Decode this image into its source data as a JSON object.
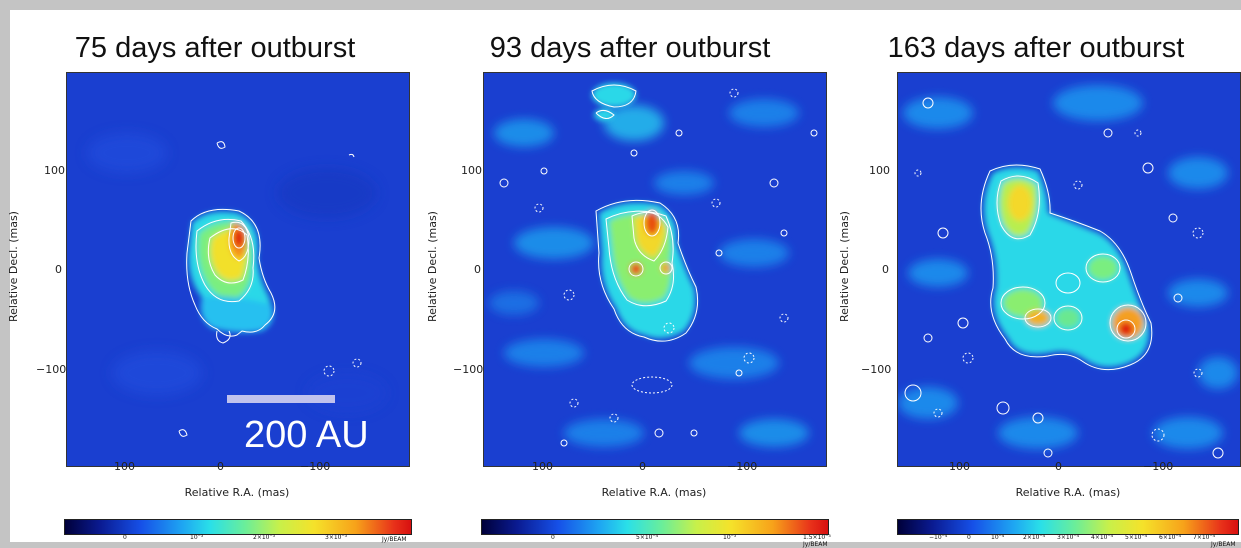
{
  "panels": [
    {
      "title": "75 days after outburst",
      "ylabel": "Relative Decl. (mas)",
      "xlabel": "Relative R.A. (mas)",
      "yticks": [
        "100",
        "0",
        "−100"
      ],
      "xticks": [
        "100",
        "0",
        "−100"
      ],
      "colorbar_ticks": [
        "0",
        "10⁻³",
        "2×10⁻³",
        "3×10⁻³"
      ],
      "colorbar_unit": "Jy/BEAM"
    },
    {
      "title": "93 days after outburst",
      "ylabel": "Relative Decl. (mas)",
      "xlabel": "Relative R.A. (mas)",
      "yticks": [
        "100",
        "0",
        "−100"
      ],
      "xticks": [
        "100",
        "0",
        "−100"
      ],
      "colorbar_ticks": [
        "0",
        "5×10⁻⁴",
        "10⁻³",
        "1.5×10⁻³"
      ],
      "colorbar_unit": "Jy/BEAM"
    },
    {
      "title": "163 days after outburst",
      "ylabel": "Relative Decl. (mas)",
      "xlabel": "Relative R.A. (mas)",
      "yticks": [
        "100",
        "0",
        "−100"
      ],
      "xticks": [
        "100",
        "0",
        "−100"
      ],
      "colorbar_ticks": [
        "−10⁻⁴",
        "0",
        "10⁻⁴",
        "2×10⁻⁴",
        "3×10⁻⁴",
        "4×10⁻⁴",
        "5×10⁻⁴",
        "6×10⁻⁴",
        "7×10⁻⁴"
      ],
      "colorbar_unit": "Jy/BEAM"
    }
  ],
  "scale_bar": {
    "label": "200 AU"
  },
  "colors": {
    "background": "#1a3fd0",
    "contour": "#ffffff",
    "peak": "#e02010",
    "frame": "#c4c4c4"
  }
}
